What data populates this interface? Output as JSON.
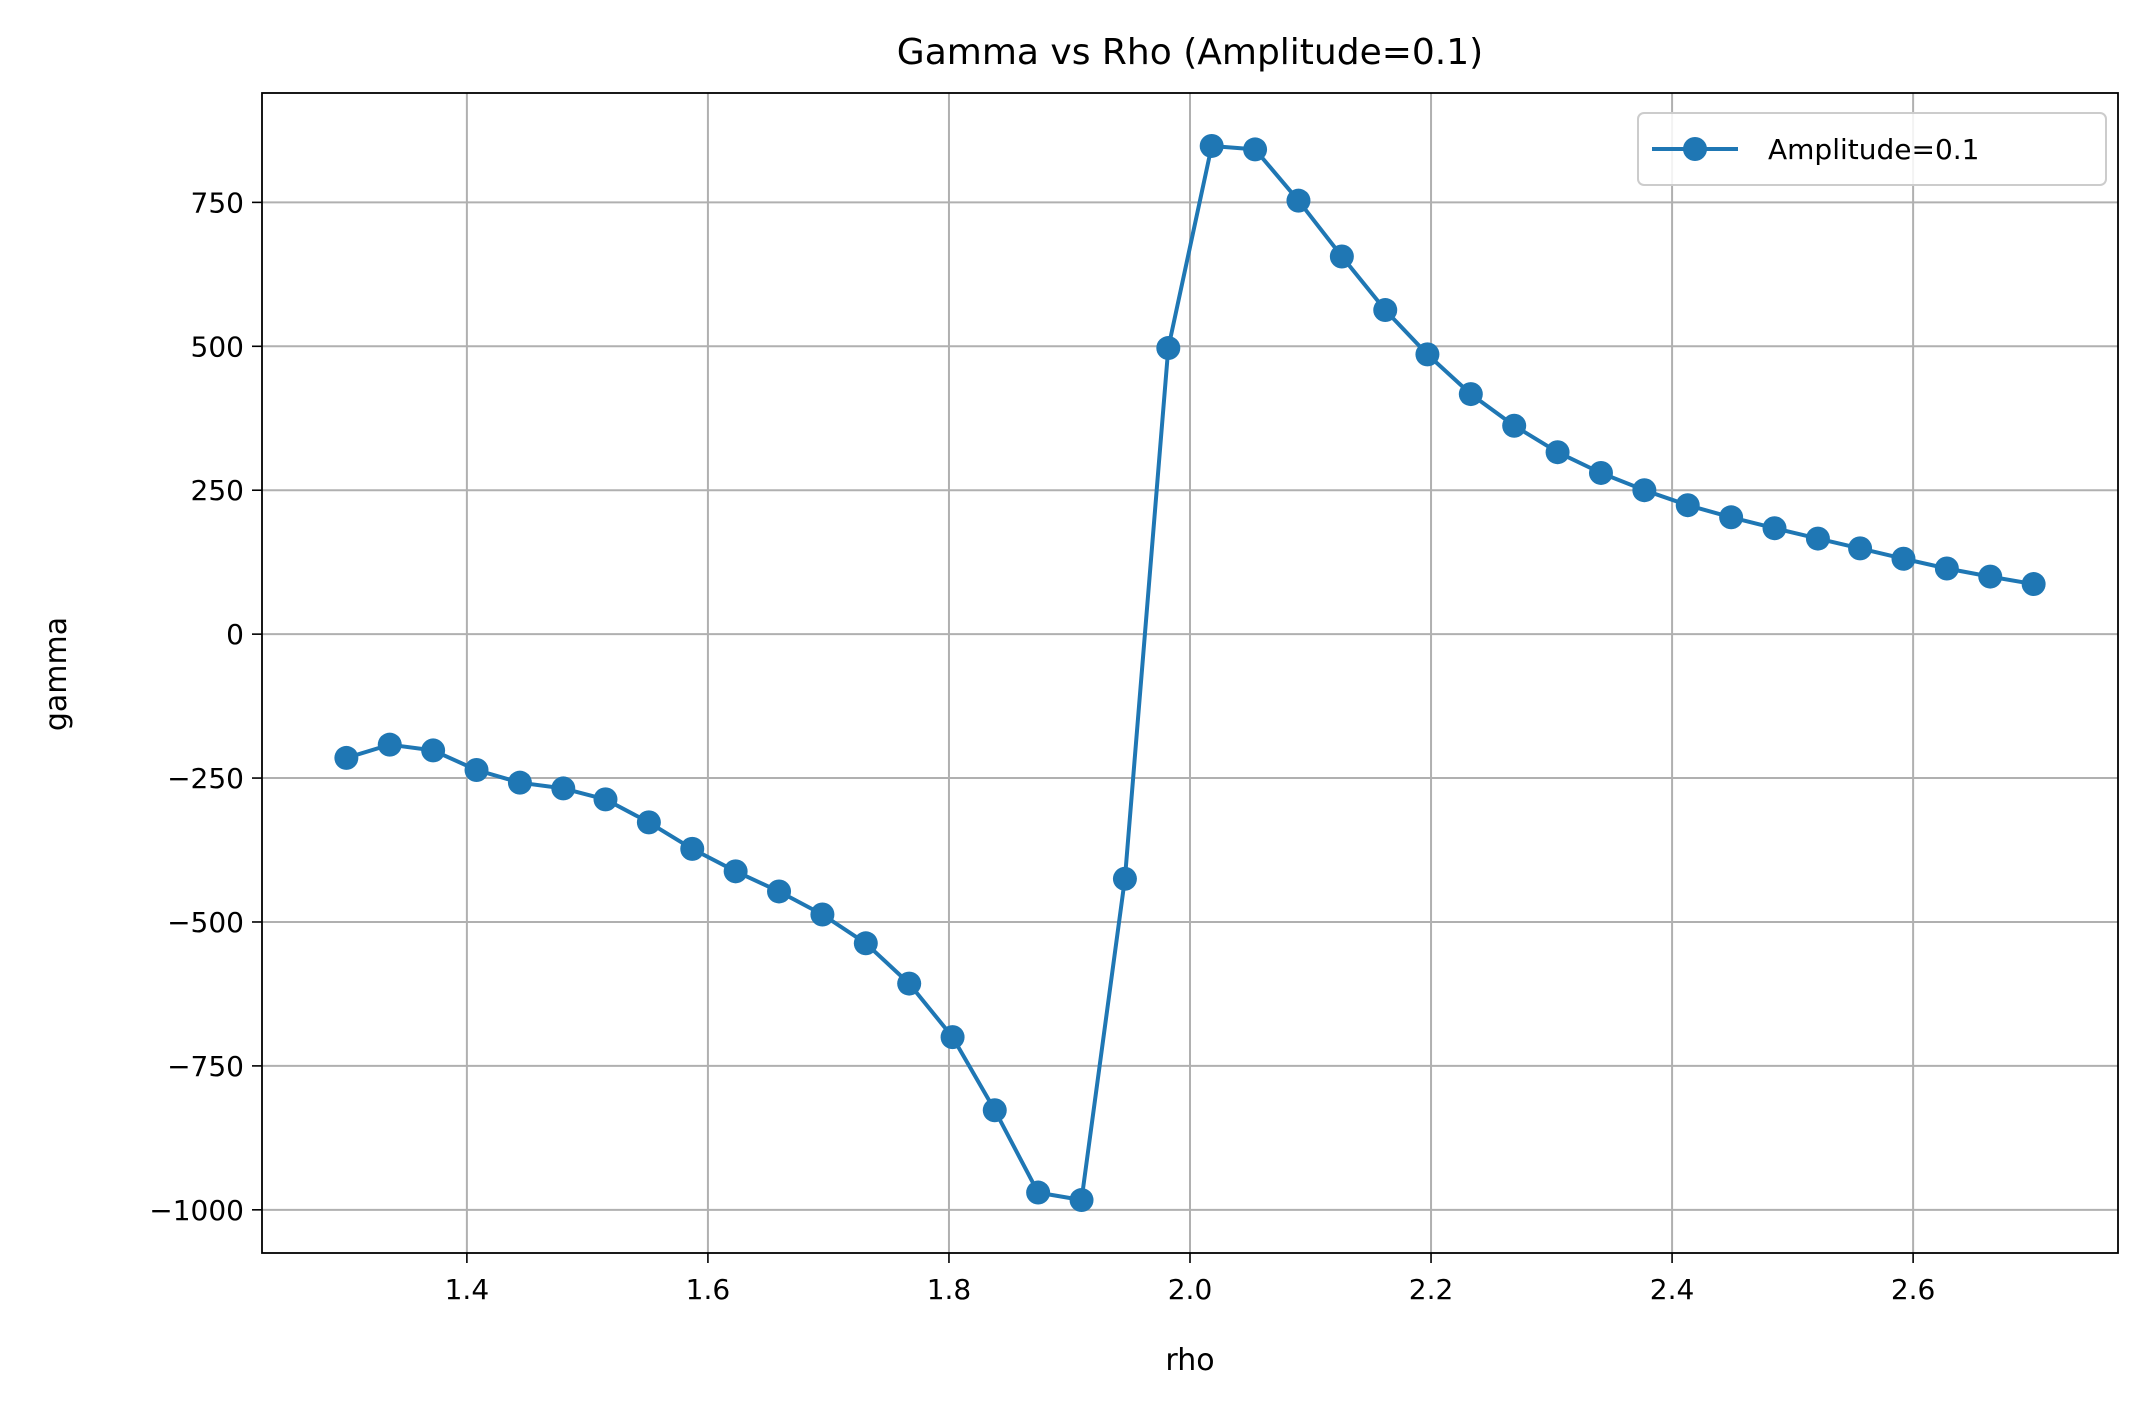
{
  "chart_data": {
    "type": "line",
    "title": "Gamma vs Rho (Amplitude=0.1)",
    "xlabel": "rho",
    "ylabel": "gamma",
    "xlim": [
      1.23,
      2.77
    ],
    "ylim": [
      -1075,
      940
    ],
    "xticks": [
      1.4,
      1.6,
      1.8,
      2.0,
      2.2,
      2.4,
      2.6
    ],
    "xtick_labels": [
      "1.4",
      "1.6",
      "1.8",
      "2.0",
      "2.2",
      "2.4",
      "2.6"
    ],
    "yticks": [
      -1000,
      -750,
      -500,
      -250,
      0,
      250,
      500,
      750
    ],
    "ytick_labels": [
      "−1000",
      "−750",
      "−500",
      "−250",
      "0",
      "250",
      "500",
      "750"
    ],
    "grid": true,
    "legend_position": "top-right",
    "series": [
      {
        "name": "Amplitude=0.1",
        "color": "#1f77b4",
        "marker": "circle",
        "x": [
          1.3,
          1.336,
          1.372,
          1.408,
          1.444,
          1.48,
          1.515,
          1.551,
          1.587,
          1.623,
          1.659,
          1.695,
          1.731,
          1.767,
          1.803,
          1.838,
          1.874,
          1.91,
          1.946,
          1.982,
          2.018,
          2.054,
          2.09,
          2.126,
          2.162,
          2.197,
          2.233,
          2.269,
          2.305,
          2.341,
          2.377,
          2.413,
          2.449,
          2.485,
          2.521,
          2.556,
          2.592,
          2.628,
          2.664,
          2.7
        ],
        "y": [
          -215,
          -192,
          -202,
          -236,
          -258,
          -268,
          -287,
          -327,
          -373,
          -412,
          -447,
          -487,
          -537,
          -607,
          -700,
          -827,
          -970,
          -983,
          -425,
          497,
          848,
          842,
          753,
          656,
          563,
          486,
          417,
          362,
          316,
          280,
          250,
          224,
          203,
          184,
          166,
          149,
          131,
          114,
          100,
          87
        ]
      }
    ]
  }
}
